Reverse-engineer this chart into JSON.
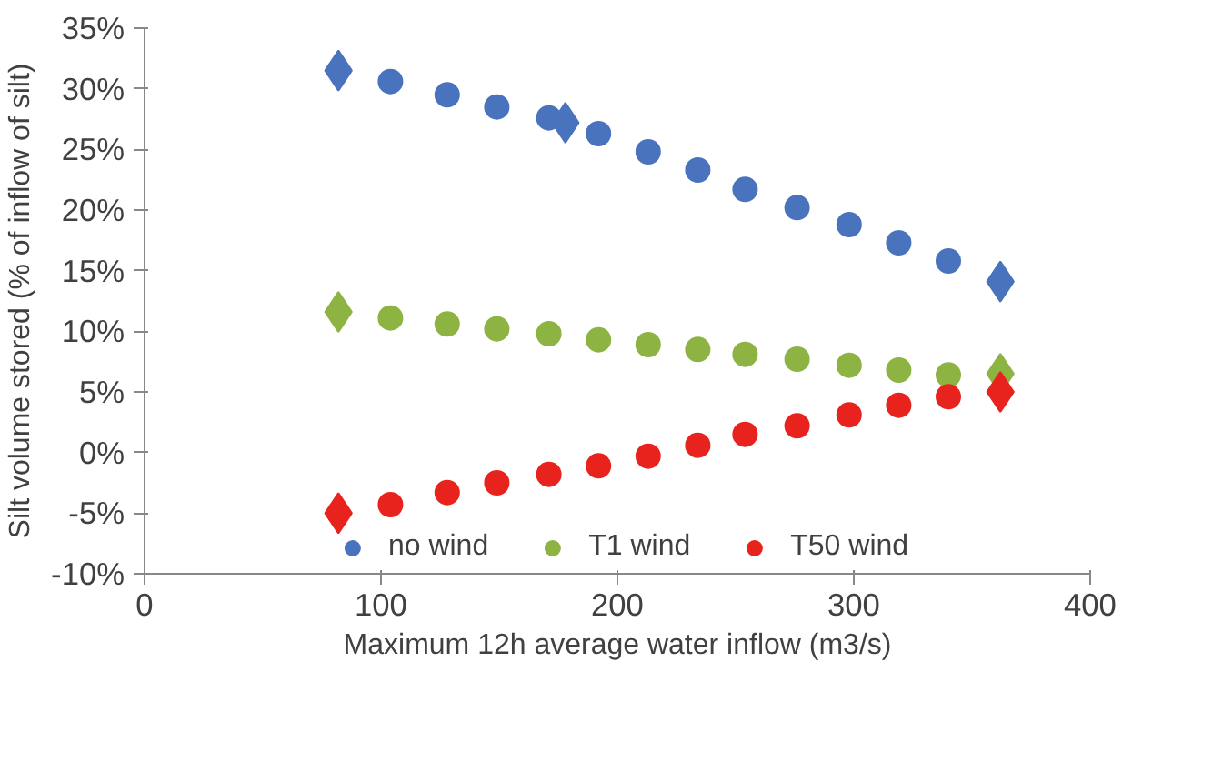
{
  "chart_data": {
    "type": "scatter",
    "xlabel": "Maximum 12h average water inflow (m3/s)",
    "ylabel": "Silt volume stored (% of inflow of silt)",
    "xlim": [
      0,
      400
    ],
    "xticks": [
      0,
      100,
      200,
      300,
      400
    ],
    "ylim": [
      -10,
      35
    ],
    "yticks": [
      {
        "value": -10,
        "label": "-10%"
      },
      {
        "value": -5,
        "label": "-5%"
      },
      {
        "value": 0,
        "label": "0%"
      },
      {
        "value": 5,
        "label": "5%"
      },
      {
        "value": 10,
        "label": "10%"
      },
      {
        "value": 15,
        "label": "15%"
      },
      {
        "value": 20,
        "label": "20%"
      },
      {
        "value": 25,
        "label": "25%"
      },
      {
        "value": 30,
        "label": "30%"
      },
      {
        "value": 35,
        "label": "35%"
      }
    ],
    "grid": false,
    "legend": "bottom",
    "series": [
      {
        "name": "no wind",
        "color": "#4a73be",
        "marker": "circle",
        "x": [
          104,
          128,
          149,
          171,
          192,
          213,
          234,
          254,
          276,
          298,
          319,
          340
        ],
        "values": [
          30.6,
          29.5,
          28.5,
          27.6,
          26.3,
          24.8,
          23.3,
          21.7,
          20.2,
          18.8,
          17.3,
          15.8
        ]
      },
      {
        "color": "#4a73be",
        "marker": "diamond",
        "x": [
          82,
          178,
          362
        ],
        "values": [
          31.5,
          27.2,
          14.1
        ]
      },
      {
        "name": "T1 wind",
        "color": "#8db443",
        "marker": "circle",
        "x": [
          104,
          128,
          149,
          171,
          192,
          213,
          234,
          254,
          276,
          298,
          319,
          340
        ],
        "values": [
          11.1,
          10.6,
          10.2,
          9.8,
          9.3,
          8.9,
          8.5,
          8.1,
          7.7,
          7.2,
          6.8,
          6.4
        ]
      },
      {
        "color": "#8db443",
        "marker": "diamond",
        "x": [
          82,
          362
        ],
        "values": [
          11.6,
          6.5
        ]
      },
      {
        "name": "T50 wind",
        "color": "#e8231e",
        "marker": "circle",
        "x": [
          104,
          128,
          149,
          171,
          192,
          213,
          234,
          254,
          276,
          298,
          319,
          340
        ],
        "values": [
          -4.3,
          -3.3,
          -2.5,
          -1.8,
          -1.1,
          -0.3,
          0.6,
          1.5,
          2.2,
          3.1,
          3.9,
          4.6
        ]
      },
      {
        "color": "#e8231e",
        "marker": "diamond",
        "x": [
          82,
          362
        ],
        "values": [
          -5.0,
          5.0
        ]
      }
    ]
  }
}
